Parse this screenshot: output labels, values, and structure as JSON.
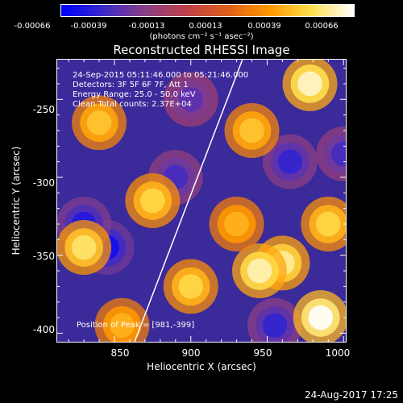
{
  "colorbar": {
    "tick_labels": [
      "-0.00066",
      "-0.00039",
      "-0.00013",
      "0.00013",
      "0.00039",
      "0.00066"
    ],
    "units": "(photons cm⁻² s⁻¹ asec⁻²)",
    "colormap_stops": [
      "#0000ff",
      "#3b2ac8",
      "#8a3f86",
      "#c0404a",
      "#e06018",
      "#ff9a00",
      "#ffe050",
      "#ffffff"
    ]
  },
  "chart_data": {
    "type": "heatmap",
    "title": "Reconstructed RHESSI Image",
    "xlabel": "Heliocentric X (arcsec)",
    "ylabel": "Heliocentric Y (arcsec)",
    "xlim": [
      812,
      1002
    ],
    "ylim": [
      -406,
      -224
    ],
    "x_ticks": [
      850,
      900,
      950,
      1000
    ],
    "y_ticks": [
      -250,
      -300,
      -350,
      -400
    ],
    "x_tick_labels": [
      "850",
      "900",
      "950",
      "1000"
    ],
    "y_tick_labels": [
      "-250",
      "-300",
      "-350",
      "-400"
    ],
    "limb_line": [
      [
        863,
        -406
      ],
      [
        934,
        -224
      ]
    ],
    "peak": {
      "x": 981,
      "y": -399
    },
    "bright_sources": [
      {
        "x": 978,
        "y": -240,
        "value": 0.0006
      },
      {
        "x": 840,
        "y": -265,
        "value": 0.0004
      },
      {
        "x": 830,
        "y": -345,
        "value": 0.0005
      },
      {
        "x": 900,
        "y": -370,
        "value": 0.00045
      },
      {
        "x": 960,
        "y": -355,
        "value": 0.00055
      },
      {
        "x": 945,
        "y": -360,
        "value": 0.00058
      },
      {
        "x": 875,
        "y": -315,
        "value": 0.00045
      },
      {
        "x": 940,
        "y": -270,
        "value": 0.0004
      },
      {
        "x": 985,
        "y": -390,
        "value": 0.00066
      },
      {
        "x": 990,
        "y": -330,
        "value": 0.00045
      },
      {
        "x": 930,
        "y": -330,
        "value": 0.00035
      },
      {
        "x": 855,
        "y": -395,
        "value": 0.00035
      }
    ],
    "dark_sources": [
      {
        "x": 845,
        "y": -345,
        "value": -0.0006
      },
      {
        "x": 830,
        "y": -330,
        "value": -0.00055
      },
      {
        "x": 965,
        "y": -290,
        "value": -0.0005
      },
      {
        "x": 890,
        "y": -300,
        "value": -0.00045
      },
      {
        "x": 955,
        "y": -395,
        "value": -0.0005
      },
      {
        "x": 900,
        "y": -250,
        "value": -0.0004
      },
      {
        "x": 1000,
        "y": -285,
        "value": -0.00045
      }
    ]
  },
  "overlay": {
    "line1": "24-Sep-2015 05:11:46.000 to 05:21:46.000",
    "line2": "Detectors: 3F 5F 6F 7F, Att 1",
    "line3": "Energy Range: 25.0 - 50.0 keV",
    "line4": "Clean     Total counts: 2.37E+04",
    "peak_text": "Position of Peak = [981,-399]"
  },
  "footer": {
    "date": "24-Aug-2017 17:25"
  }
}
